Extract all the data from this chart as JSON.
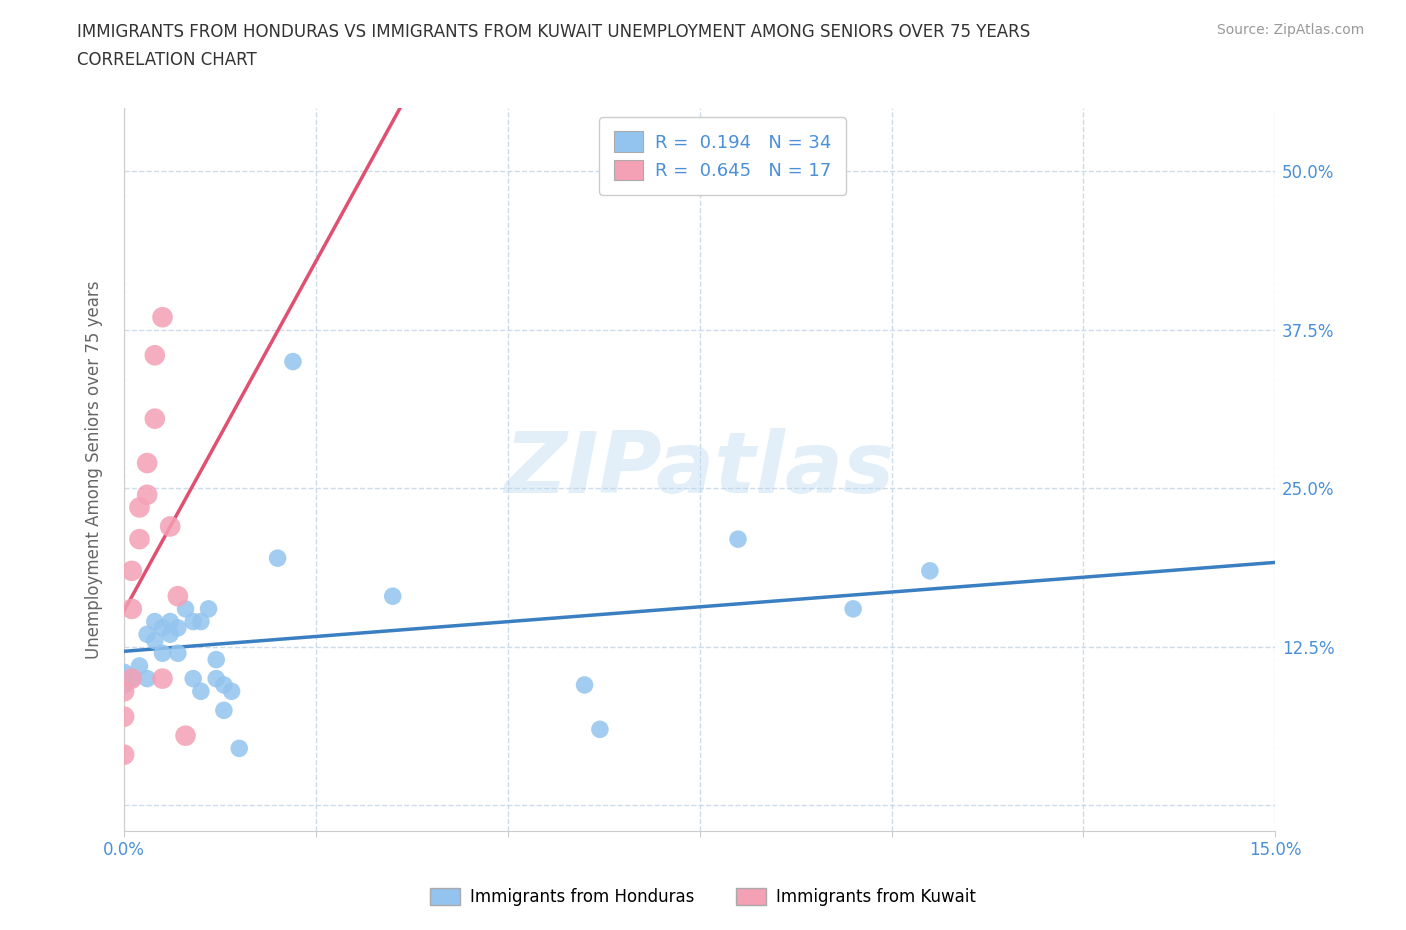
{
  "title_line1": "IMMIGRANTS FROM HONDURAS VS IMMIGRANTS FROM KUWAIT UNEMPLOYMENT AMONG SENIORS OVER 75 YEARS",
  "title_line2": "CORRELATION CHART",
  "source": "Source: ZipAtlas.com",
  "ylabel": "Unemployment Among Seniors over 75 years",
  "xlim": [
    0.0,
    0.15
  ],
  "ylim": [
    -0.02,
    0.55
  ],
  "xticks": [
    0.0,
    0.025,
    0.05,
    0.075,
    0.1,
    0.125,
    0.15
  ],
  "xtick_labels": [
    "0.0%",
    "",
    "",
    "",
    "",
    "",
    "15.0%"
  ],
  "yticks": [
    0.0,
    0.125,
    0.25,
    0.375,
    0.5
  ],
  "ytick_labels_right": [
    "",
    "12.5%",
    "25.0%",
    "37.5%",
    "50.0%"
  ],
  "honduras_color": "#93c4ef",
  "kuwait_color": "#f4a0b5",
  "trendline_honduras_color": "#3a7fc1",
  "trendline_kuwait_color": "#e05070",
  "R_honduras": 0.194,
  "N_honduras": 34,
  "R_kuwait": 0.645,
  "N_kuwait": 17,
  "legend_label_honduras": "Immigrants from Honduras",
  "legend_label_kuwait": "Immigrants from Kuwait",
  "watermark": "ZIPatlas",
  "background_color": "#ffffff",
  "grid_color": "#c8d8e8",
  "honduras_x": [
    0.0,
    0.0,
    0.001,
    0.002,
    0.003,
    0.003,
    0.004,
    0.004,
    0.005,
    0.005,
    0.006,
    0.006,
    0.007,
    0.007,
    0.008,
    0.009,
    0.009,
    0.01,
    0.01,
    0.011,
    0.012,
    0.012,
    0.013,
    0.013,
    0.014,
    0.015,
    0.02,
    0.022,
    0.035,
    0.06,
    0.062,
    0.08,
    0.095,
    0.105
  ],
  "honduras_y": [
    0.105,
    0.095,
    0.1,
    0.11,
    0.1,
    0.135,
    0.145,
    0.13,
    0.12,
    0.14,
    0.145,
    0.135,
    0.12,
    0.14,
    0.155,
    0.145,
    0.1,
    0.145,
    0.09,
    0.155,
    0.115,
    0.1,
    0.075,
    0.095,
    0.09,
    0.045,
    0.195,
    0.35,
    0.165,
    0.095,
    0.06,
    0.21,
    0.155,
    0.185
  ],
  "kuwait_x": [
    0.0,
    0.0,
    0.0,
    0.001,
    0.001,
    0.001,
    0.002,
    0.002,
    0.003,
    0.003,
    0.004,
    0.004,
    0.005,
    0.005,
    0.006,
    0.007,
    0.008
  ],
  "kuwait_y": [
    0.07,
    0.09,
    0.04,
    0.1,
    0.155,
    0.185,
    0.21,
    0.235,
    0.245,
    0.27,
    0.305,
    0.355,
    0.385,
    0.1,
    0.22,
    0.165,
    0.055
  ],
  "trendline_kuwait_x_start": -0.001,
  "trendline_kuwait_x_end": 0.009
}
